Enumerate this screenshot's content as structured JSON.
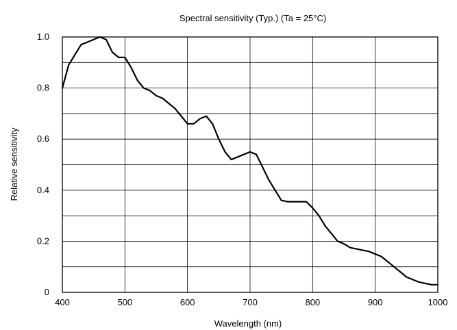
{
  "chart_data": {
    "type": "line",
    "title": "Spectral sensitivity (Typ.) (Ta = 25°C)",
    "xlabel": "Wavelength (nm)",
    "ylabel": "Relative sensitivity",
    "xlim": [
      400,
      1000
    ],
    "ylim": [
      0,
      1.0
    ],
    "x_ticks": [
      400,
      500,
      600,
      700,
      800,
      900,
      1000
    ],
    "y_ticks": [
      0,
      0.2,
      0.4,
      0.6,
      0.8,
      1.0
    ],
    "x_tick_labels": [
      "400",
      "500",
      "600",
      "700",
      "800",
      "900",
      "1000"
    ],
    "y_tick_labels": [
      "0",
      "0.2",
      "0.4",
      "0.6",
      "0.8",
      "1.0"
    ],
    "grid": true,
    "series": [
      {
        "x": [
          400,
          410,
          420,
          430,
          440,
          450,
          460,
          470,
          480,
          490,
          500,
          510,
          520,
          530,
          540,
          550,
          560,
          570,
          580,
          590,
          600,
          610,
          620,
          630,
          640,
          650,
          660,
          670,
          680,
          690,
          700,
          710,
          720,
          730,
          740,
          750,
          760,
          770,
          780,
          790,
          800,
          810,
          820,
          830,
          840,
          850,
          860,
          870,
          880,
          890,
          900,
          910,
          920,
          930,
          940,
          950,
          960,
          970,
          980,
          990,
          1000
        ],
        "y": [
          0.8,
          0.89,
          0.93,
          0.97,
          0.98,
          0.99,
          1.0,
          0.99,
          0.94,
          0.92,
          0.92,
          0.88,
          0.83,
          0.8,
          0.79,
          0.77,
          0.76,
          0.74,
          0.72,
          0.69,
          0.66,
          0.66,
          0.68,
          0.69,
          0.66,
          0.6,
          0.55,
          0.52,
          0.53,
          0.54,
          0.55,
          0.54,
          0.49,
          0.44,
          0.4,
          0.36,
          0.355,
          0.355,
          0.355,
          0.355,
          0.33,
          0.3,
          0.26,
          0.23,
          0.2,
          0.19,
          0.175,
          0.17,
          0.165,
          0.16,
          0.15,
          0.14,
          0.12,
          0.1,
          0.08,
          0.06,
          0.05,
          0.04,
          0.035,
          0.03,
          0.03
        ]
      }
    ]
  },
  "colors": {
    "line": "#000000",
    "grid": "#000000",
    "background": "#ffffff"
  }
}
